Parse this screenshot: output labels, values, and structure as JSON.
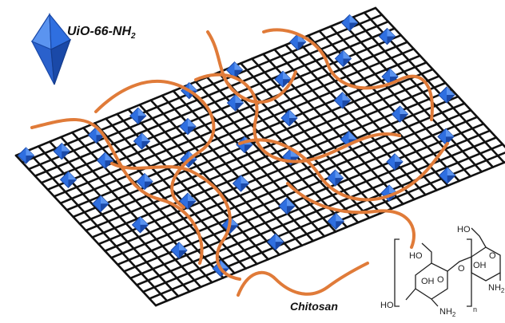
{
  "labels": {
    "crystal_name_main": "UiO-66-NH",
    "crystal_name_subscript": "2",
    "polymer_name": "Chitosan"
  },
  "structure_labels": {
    "top_hydroxyl": "HO",
    "left_hydroxymethyl": "HO",
    "ring_hydroxyl": "OH",
    "ring_oxygen_left": "O",
    "ring_oxygen_right": "O",
    "bridge_oxygen": "O",
    "right_hydroxyl": "OH",
    "left_end_hydroxyl": "HO",
    "amine_left": "NH",
    "amine_left_subscript": "2",
    "amine_right": "NH",
    "amine_right_subscript": "2",
    "repeat_index": "n"
  },
  "colors": {
    "mesh": "#111111",
    "crystal_face": "#2f6fe0",
    "crystal_dark": "#1a49a8",
    "crystal_light": "#5b94f0",
    "polymer": "#e07b39"
  },
  "icons": [
    "octahedron-icon"
  ]
}
